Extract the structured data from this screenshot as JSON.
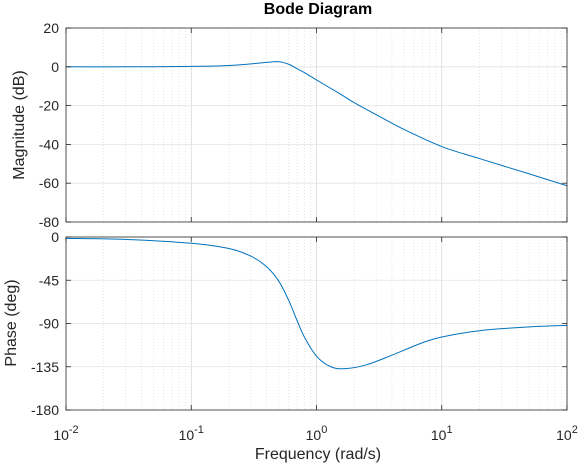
{
  "chart_data": [
    {
      "type": "line",
      "title": "Bode Diagram",
      "xlabel": "Frequency  (rad/s)",
      "ylabel": "Magnitude (dB)",
      "x_scale": "log",
      "xlim": [
        0.01,
        100
      ],
      "ylim": [
        -80,
        20
      ],
      "yticks": [
        20,
        0,
        -20,
        -40,
        -60,
        -80
      ],
      "grid": true,
      "line_color": "#0072BD",
      "series": [
        {
          "x": [
            0.01,
            0.03,
            0.1,
            0.2,
            0.3,
            0.4,
            0.5,
            0.6,
            0.7,
            0.8,
            1,
            1.5,
            2,
            3,
            5,
            10,
            20,
            50,
            100
          ],
          "values": [
            0,
            0,
            0.2,
            0.7,
            1.5,
            2.3,
            2.6,
            1.3,
            -1.0,
            -3.0,
            -6.8,
            -13.5,
            -18.5,
            -24.7,
            -32.3,
            -41.1,
            -47.3,
            -55.2,
            -61.3
          ]
        }
      ]
    },
    {
      "type": "line",
      "xlabel": "Frequency  (rad/s)",
      "ylabel": "Phase (deg)",
      "x_scale": "log",
      "xlim": [
        0.01,
        100
      ],
      "ylim": [
        -180,
        0
      ],
      "yticks": [
        0,
        -45,
        -90,
        -135,
        -180
      ],
      "xticks": [
        {
          "base": "10",
          "exp": "-2"
        },
        {
          "base": "10",
          "exp": "-1"
        },
        {
          "base": "10",
          "exp": "0"
        },
        {
          "base": "10",
          "exp": "1"
        },
        {
          "base": "10",
          "exp": "2"
        }
      ],
      "grid": true,
      "line_color": "#0072BD",
      "series": [
        {
          "x": [
            0.01,
            0.03,
            0.1,
            0.2,
            0.3,
            0.4,
            0.5,
            0.6,
            0.7,
            0.8,
            1,
            1.3,
            1.7,
            2.5,
            4,
            7,
            10,
            20,
            50,
            100
          ],
          "values": [
            -1.5,
            -2.5,
            -6.5,
            -12,
            -20,
            -31,
            -46,
            -66,
            -87,
            -104,
            -124,
            -135,
            -137,
            -133,
            -123,
            -110,
            -104,
            -97.5,
            -93.5,
            -92
          ]
        }
      ]
    }
  ]
}
